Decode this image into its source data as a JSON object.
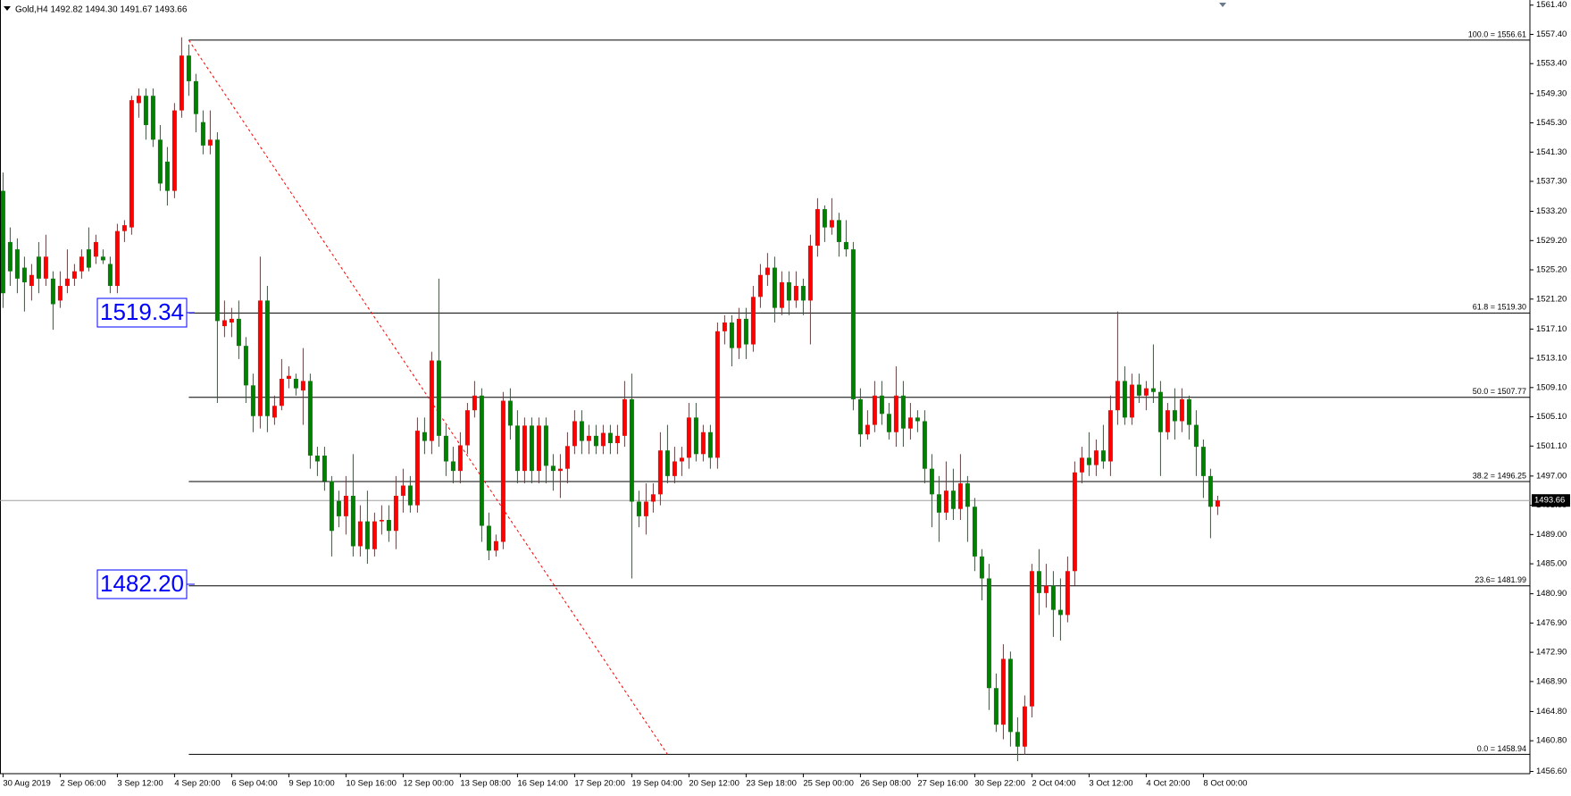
{
  "chart_data": {
    "type": "candlestick",
    "title": "Gold,H4 1492.82 1494.30 1491.67 1493.66",
    "up_color": "#ff0000",
    "down_color": "#008000",
    "ylim": [
      1456.3,
      1562.1
    ],
    "yticks": [
      {
        "value": 1561.4,
        "label": "1561.40"
      },
      {
        "value": 1557.4,
        "label": "1557.40"
      },
      {
        "value": 1553.4,
        "label": "1553.40"
      },
      {
        "value": 1549.3,
        "label": "1549.30"
      },
      {
        "value": 1545.3,
        "label": "1545.30"
      },
      {
        "value": 1541.3,
        "label": "1541.30"
      },
      {
        "value": 1537.3,
        "label": "1537.30"
      },
      {
        "value": 1533.2,
        "label": "1533.20"
      },
      {
        "value": 1529.2,
        "label": "1529.20"
      },
      {
        "value": 1525.2,
        "label": "1525.20"
      },
      {
        "value": 1521.2,
        "label": "1521.20"
      },
      {
        "value": 1517.1,
        "label": "1517.10"
      },
      {
        "value": 1513.1,
        "label": "1513.10"
      },
      {
        "value": 1509.1,
        "label": "1509.10"
      },
      {
        "value": 1505.1,
        "label": "1505.10"
      },
      {
        "value": 1501.1,
        "label": "1501.10"
      },
      {
        "value": 1497,
        "label": "1497.00"
      },
      {
        "value": 1493,
        "label": "1493.00"
      },
      {
        "value": 1489,
        "label": "1489.00"
      },
      {
        "value": 1485,
        "label": "1485.00"
      },
      {
        "value": 1480.9,
        "label": "1480.90"
      },
      {
        "value": 1476.9,
        "label": "1476.90"
      },
      {
        "value": 1472.9,
        "label": "1472.90"
      },
      {
        "value": 1468.9,
        "label": "1468.90"
      },
      {
        "value": 1464.8,
        "label": "1464.80"
      },
      {
        "value": 1460.8,
        "label": "1460.80"
      },
      {
        "value": 1456.6,
        "label": "1456.60"
      }
    ],
    "current_price": {
      "value": 1493.66,
      "label": "1493.66"
    },
    "fibo": {
      "start": 26,
      "levels": [
        {
          "value": 1556.61,
          "label": "100.0 = 1556.61"
        },
        {
          "value": 1519.3,
          "label": "61.8 = 1519.30"
        },
        {
          "value": 1507.77,
          "label": "50.0 = 1507.77"
        },
        {
          "value": 1496.25,
          "label": "38.2 = 1496.25"
        },
        {
          "value": 1481.99,
          "label": "23.6= 1481.99"
        },
        {
          "value": 1458.94,
          "label": "0.0 = 1458.94"
        }
      ]
    },
    "price_labels": [
      {
        "value": 1519.34,
        "label": "1519.34"
      },
      {
        "value": 1482.2,
        "label": "1482.20"
      }
    ],
    "trendline": {
      "x": [
        26,
        93
      ],
      "y": [
        1556.61,
        1458.94
      ],
      "color": "#ff0000"
    },
    "categories": [
      "30 Aug 2019",
      null,
      null,
      null,
      null,
      null,
      null,
      null,
      "2 Sep 06:00",
      null,
      null,
      null,
      null,
      null,
      null,
      null,
      "3 Sep 12:00",
      null,
      null,
      null,
      null,
      null,
      null,
      null,
      "4 Sep 20:00",
      null,
      null,
      null,
      null,
      null,
      null,
      null,
      "6 Sep 04:00",
      null,
      null,
      null,
      null,
      null,
      null,
      null,
      "9 Sep 10:00",
      null,
      null,
      null,
      null,
      null,
      null,
      null,
      "10 Sep 16:00",
      null,
      null,
      null,
      null,
      null,
      null,
      null,
      "12 Sep 00:00",
      null,
      null,
      null,
      null,
      null,
      null,
      null,
      "13 Sep 08:00",
      null,
      null,
      null,
      null,
      null,
      null,
      null,
      "16 Sep 14:00",
      null,
      null,
      null,
      null,
      null,
      null,
      null,
      "17 Sep 20:00",
      null,
      null,
      null,
      null,
      null,
      null,
      null,
      "19 Sep 04:00",
      null,
      null,
      null,
      null,
      null,
      null,
      null,
      "20 Sep 12:00",
      null,
      null,
      null,
      null,
      null,
      null,
      null,
      "23 Sep 18:00",
      null,
      null,
      null,
      null,
      null,
      null,
      null,
      "25 Sep 00:00",
      null,
      null,
      null,
      null,
      null,
      null,
      null,
      "26 Sep 08:00",
      null,
      null,
      null,
      null,
      null,
      null,
      null,
      "27 Sep 16:00",
      null,
      null,
      null,
      null,
      null,
      null,
      null,
      "30 Sep 22:00",
      null,
      null,
      null,
      null,
      null,
      null,
      null,
      "2 Oct 04:00",
      null,
      null,
      null,
      null,
      null,
      null,
      null,
      "3 Oct 12:00",
      null,
      null,
      null,
      null,
      null,
      null,
      null,
      "4 Oct 20:00",
      null,
      null,
      null,
      null,
      null,
      null,
      null,
      "8 Oct 00:00",
      null,
      null
    ],
    "ohlc": [
      [
        1536,
        1538.5,
        1520,
        1522
      ],
      [
        1529,
        1531,
        1523,
        1525
      ],
      [
        1528,
        1529.5,
        1522,
        1524
      ],
      [
        1525.5,
        1527,
        1519.5,
        1523.5
      ],
      [
        1523,
        1526,
        1521,
        1524.5
      ],
      [
        1527,
        1529,
        1522,
        1524
      ],
      [
        1524,
        1530,
        1523,
        1527
      ],
      [
        1524,
        1525,
        1517,
        1520.5
      ],
      [
        1521,
        1525,
        1520,
        1523
      ],
      [
        1523,
        1528,
        1522,
        1524
      ],
      [
        1524,
        1526,
        1523,
        1525
      ],
      [
        1525,
        1528,
        1524,
        1527
      ],
      [
        1528,
        1531,
        1525,
        1525.5
      ],
      [
        1527,
        1530,
        1526,
        1529
      ],
      [
        1527,
        1528,
        1526,
        1526.5
      ],
      [
        1526,
        1527,
        1522,
        1523
      ],
      [
        1523,
        1531.5,
        1522,
        1530.5
      ],
      [
        1530.5,
        1532,
        1529,
        1531.3
      ],
      [
        1531,
        1549,
        1530,
        1548.4
      ],
      [
        1548,
        1550,
        1546,
        1549
      ],
      [
        1549,
        1550,
        1543,
        1545
      ],
      [
        1549,
        1550,
        1542,
        1543
      ],
      [
        1543,
        1545,
        1536,
        1537
      ],
      [
        1540,
        1542,
        1534,
        1536
      ],
      [
        1536,
        1548,
        1535,
        1547
      ],
      [
        1547,
        1557,
        1546,
        1554.5
      ],
      [
        1554.5,
        1556,
        1549,
        1551
      ],
      [
        1551,
        1552,
        1544,
        1546.5
      ],
      [
        1545.4,
        1547,
        1541,
        1542.2
      ],
      [
        1542.2,
        1547,
        1541,
        1543
      ],
      [
        1543,
        1544,
        1507,
        1518.2
      ],
      [
        1517.5,
        1521,
        1516,
        1518.3
      ],
      [
        1518,
        1520,
        1516,
        1518.5
      ],
      [
        1518.5,
        1521,
        1513,
        1514.8
      ],
      [
        1514.8,
        1516,
        1507,
        1509.4
      ],
      [
        1509.4,
        1511,
        1503,
        1505.2
      ],
      [
        1505.2,
        1527,
        1503.5,
        1521
      ],
      [
        1521,
        1523,
        1503,
        1505.2
      ],
      [
        1505,
        1508,
        1504,
        1506.6
      ],
      [
        1506.6,
        1513,
        1506,
        1510.3
      ],
      [
        1510.3,
        1512,
        1509,
        1510.7
      ],
      [
        1510.3,
        1511,
        1508,
        1509
      ],
      [
        1508.7,
        1514.5,
        1504,
        1510
      ],
      [
        1510,
        1511,
        1498,
        1499.8
      ],
      [
        1499.8,
        1501,
        1497,
        1499
      ],
      [
        1499.8,
        1501,
        1495,
        1496.3
      ],
      [
        1496.3,
        1497,
        1486,
        1489.5
      ],
      [
        1493.6,
        1495,
        1490,
        1491.5
      ],
      [
        1491.5,
        1497,
        1489,
        1494.3
      ],
      [
        1494.3,
        1500,
        1486,
        1487.4
      ],
      [
        1487.4,
        1493,
        1486,
        1490.8
      ],
      [
        1490.8,
        1495,
        1485,
        1487
      ],
      [
        1487,
        1492,
        1486,
        1490.8
      ],
      [
        1490.8,
        1493,
        1489,
        1491
      ],
      [
        1491,
        1493,
        1488,
        1489.5
      ],
      [
        1489.5,
        1497,
        1487,
        1494.3
      ],
      [
        1494.3,
        1498,
        1492,
        1495.7
      ],
      [
        1495.7,
        1497,
        1492,
        1493
      ],
      [
        1493,
        1505,
        1492,
        1503.2
      ],
      [
        1503,
        1505,
        1500,
        1501.8
      ],
      [
        1501.8,
        1514,
        1500,
        1512.8
      ],
      [
        1512.8,
        1524,
        1501,
        1502.5
      ],
      [
        1502.5,
        1504,
        1497,
        1499
      ],
      [
        1499,
        1501,
        1496,
        1497.7
      ],
      [
        1497.7,
        1503,
        1496,
        1501.2
      ],
      [
        1501.2,
        1507,
        1500,
        1506
      ],
      [
        1506,
        1510,
        1505,
        1508
      ],
      [
        1508,
        1509,
        1488,
        1490.2
      ],
      [
        1490.2,
        1492,
        1485.5,
        1486.8
      ],
      [
        1486.8,
        1489,
        1486,
        1488.1
      ],
      [
        1488,
        1508.5,
        1487,
        1507.3
      ],
      [
        1507.3,
        1509,
        1502,
        1503.9
      ],
      [
        1503.9,
        1506,
        1496,
        1497.7
      ],
      [
        1497.7,
        1505,
        1496,
        1503.9
      ],
      [
        1503.9,
        1505,
        1496,
        1497.7
      ],
      [
        1497.7,
        1505,
        1496,
        1503.9
      ],
      [
        1503.9,
        1505,
        1496,
        1498.4
      ],
      [
        1498.4,
        1500,
        1495,
        1497.7
      ],
      [
        1497.7,
        1500,
        1494,
        1498
      ],
      [
        1498,
        1503,
        1496,
        1501.1
      ],
      [
        1501.1,
        1506,
        1500,
        1504.5
      ],
      [
        1504.5,
        1506,
        1500,
        1501.8
      ],
      [
        1501.8,
        1504,
        1500,
        1502.5
      ],
      [
        1502.5,
        1504,
        1500,
        1501.1
      ],
      [
        1501.1,
        1504,
        1500,
        1502.9
      ],
      [
        1502.9,
        1504,
        1500,
        1501.5
      ],
      [
        1501.5,
        1504,
        1500,
        1502.5
      ],
      [
        1502.5,
        1510,
        1501,
        1507.5
      ],
      [
        1507.5,
        1511,
        1483,
        1493.5
      ],
      [
        1493.5,
        1495,
        1490,
        1491.5
      ],
      [
        1491.5,
        1496,
        1489,
        1493.5
      ],
      [
        1493.5,
        1496,
        1492,
        1494.5
      ],
      [
        1494.5,
        1503,
        1493,
        1500.5
      ],
      [
        1500.5,
        1504,
        1496,
        1497
      ],
      [
        1497,
        1501,
        1496,
        1499
      ],
      [
        1499,
        1501,
        1497,
        1499.5
      ],
      [
        1499.5,
        1507,
        1498,
        1505
      ],
      [
        1505,
        1507,
        1499,
        1500
      ],
      [
        1500,
        1504,
        1499,
        1503
      ],
      [
        1503,
        1504,
        1498,
        1499.5
      ],
      [
        1499.5,
        1518,
        1498,
        1516.8
      ],
      [
        1516.8,
        1519,
        1515,
        1518
      ],
      [
        1518,
        1519,
        1512,
        1514.5
      ],
      [
        1514.5,
        1520,
        1513,
        1518.5
      ],
      [
        1518.5,
        1520,
        1513,
        1515
      ],
      [
        1515,
        1523,
        1514,
        1521.5
      ],
      [
        1521.5,
        1526,
        1520,
        1524.5
      ],
      [
        1524.5,
        1527.5,
        1523,
        1525.5
      ],
      [
        1525.5,
        1527,
        1518,
        1520
      ],
      [
        1520,
        1525,
        1519,
        1523.5
      ],
      [
        1523.5,
        1525,
        1519,
        1521
      ],
      [
        1521,
        1525,
        1520,
        1523
      ],
      [
        1523,
        1524,
        1519,
        1521
      ],
      [
        1521,
        1530,
        1515,
        1528.5
      ],
      [
        1528.5,
        1535,
        1527,
        1533.5
      ],
      [
        1533.5,
        1534,
        1529,
        1531
      ],
      [
        1531,
        1535,
        1530,
        1532
      ],
      [
        1532,
        1533,
        1527,
        1529
      ],
      [
        1529,
        1532,
        1527,
        1528
      ],
      [
        1528,
        1529,
        1506,
        1507.5
      ],
      [
        1507.5,
        1509,
        1501,
        1502.7
      ],
      [
        1502.7,
        1506,
        1502,
        1504
      ],
      [
        1504,
        1510,
        1503,
        1508
      ],
      [
        1508,
        1510,
        1504,
        1505.5
      ],
      [
        1505.5,
        1507,
        1502,
        1503
      ],
      [
        1503,
        1512,
        1501,
        1508
      ],
      [
        1508,
        1510,
        1501,
        1503.5
      ],
      [
        1503.5,
        1507,
        1502,
        1505
      ],
      [
        1505,
        1506,
        1503,
        1504.5
      ],
      [
        1504.5,
        1506,
        1496,
        1498
      ],
      [
        1498,
        1500,
        1490,
        1494.5
      ],
      [
        1494.5,
        1497,
        1488,
        1492
      ],
      [
        1492,
        1499,
        1491,
        1495
      ],
      [
        1495,
        1498,
        1491,
        1492.5
      ],
      [
        1492.5,
        1500,
        1491,
        1496
      ],
      [
        1496,
        1497,
        1488,
        1492.8
      ],
      [
        1492.8,
        1494,
        1484,
        1486
      ],
      [
        1486,
        1487,
        1480,
        1483
      ],
      [
        1483,
        1485,
        1465,
        1468
      ],
      [
        1468,
        1470,
        1462,
        1463
      ],
      [
        1463,
        1474,
        1461,
        1472
      ],
      [
        1472,
        1473,
        1460,
        1462
      ],
      [
        1462,
        1464,
        1458,
        1460
      ],
      [
        1460,
        1467,
        1458.9,
        1465.5
      ],
      [
        1465.5,
        1485,
        1464,
        1484
      ],
      [
        1484,
        1487,
        1478,
        1481
      ],
      [
        1481,
        1485,
        1479,
        1482
      ],
      [
        1482,
        1484,
        1475,
        1478.7
      ],
      [
        1478.7,
        1483,
        1474.5,
        1478
      ],
      [
        1478,
        1486,
        1477,
        1484
      ],
      [
        1484,
        1499,
        1482,
        1497.5
      ],
      [
        1497.5,
        1501,
        1496,
        1499.5
      ],
      [
        1499.5,
        1503,
        1497,
        1498.5
      ],
      [
        1498.5,
        1502,
        1497,
        1500.5
      ],
      [
        1500.5,
        1504,
        1498,
        1499
      ],
      [
        1499,
        1508,
        1497,
        1506
      ],
      [
        1506,
        1519.5,
        1504,
        1510
      ],
      [
        1510,
        1512,
        1504,
        1505
      ],
      [
        1505,
        1511,
        1504,
        1509.5
      ],
      [
        1509.5,
        1511,
        1507,
        1508
      ],
      [
        1508,
        1510,
        1506,
        1509
      ],
      [
        1509,
        1515,
        1507,
        1508.5
      ],
      [
        1508.5,
        1510,
        1497,
        1503
      ],
      [
        1503,
        1507,
        1502,
        1506
      ],
      [
        1506,
        1509,
        1502,
        1504.5
      ],
      [
        1504.5,
        1509,
        1503,
        1507.5
      ],
      [
        1507.5,
        1508,
        1502,
        1504
      ],
      [
        1504,
        1506,
        1497,
        1501
      ],
      [
        1501,
        1502,
        1494,
        1497
      ],
      [
        1497,
        1498,
        1488.5,
        1492.8
      ],
      [
        1492.82,
        1494.3,
        1491.67,
        1493.66
      ]
    ]
  }
}
